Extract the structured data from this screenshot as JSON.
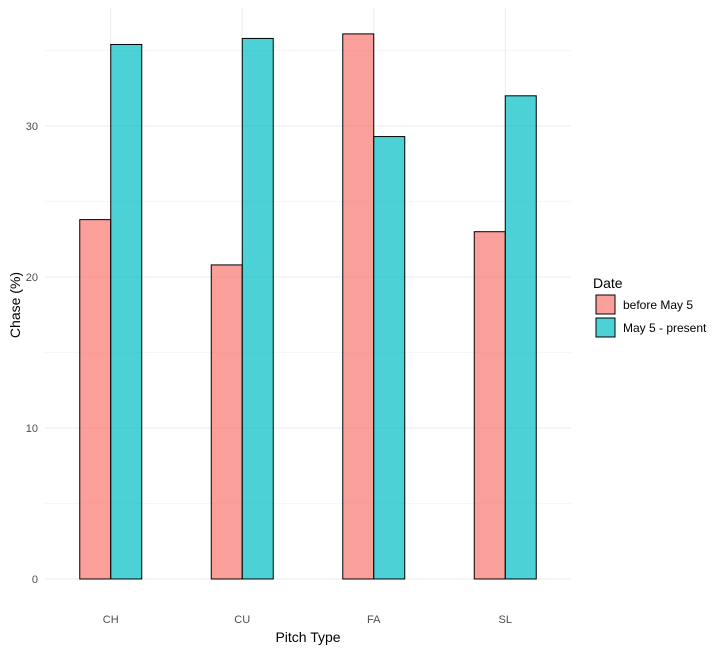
{
  "chart_data": {
    "type": "bar",
    "title": "",
    "xlabel": "Pitch Type",
    "ylabel": "Chase (%)",
    "categories": [
      "CH",
      "CU",
      "FA",
      "SL"
    ],
    "series": [
      {
        "name": "before May 5",
        "color": "#F8766D",
        "values": [
          23.8,
          20.8,
          36.1,
          23.0
        ]
      },
      {
        "name": "May 5 - present",
        "color": "#00BFC4",
        "values": [
          35.4,
          35.8,
          29.3,
          32.0
        ]
      }
    ],
    "ylim": [
      0,
      37.9
    ],
    "yticks": [
      0,
      10,
      20,
      30
    ],
    "legend": {
      "title": "Date",
      "position": "right"
    },
    "grid": true
  }
}
